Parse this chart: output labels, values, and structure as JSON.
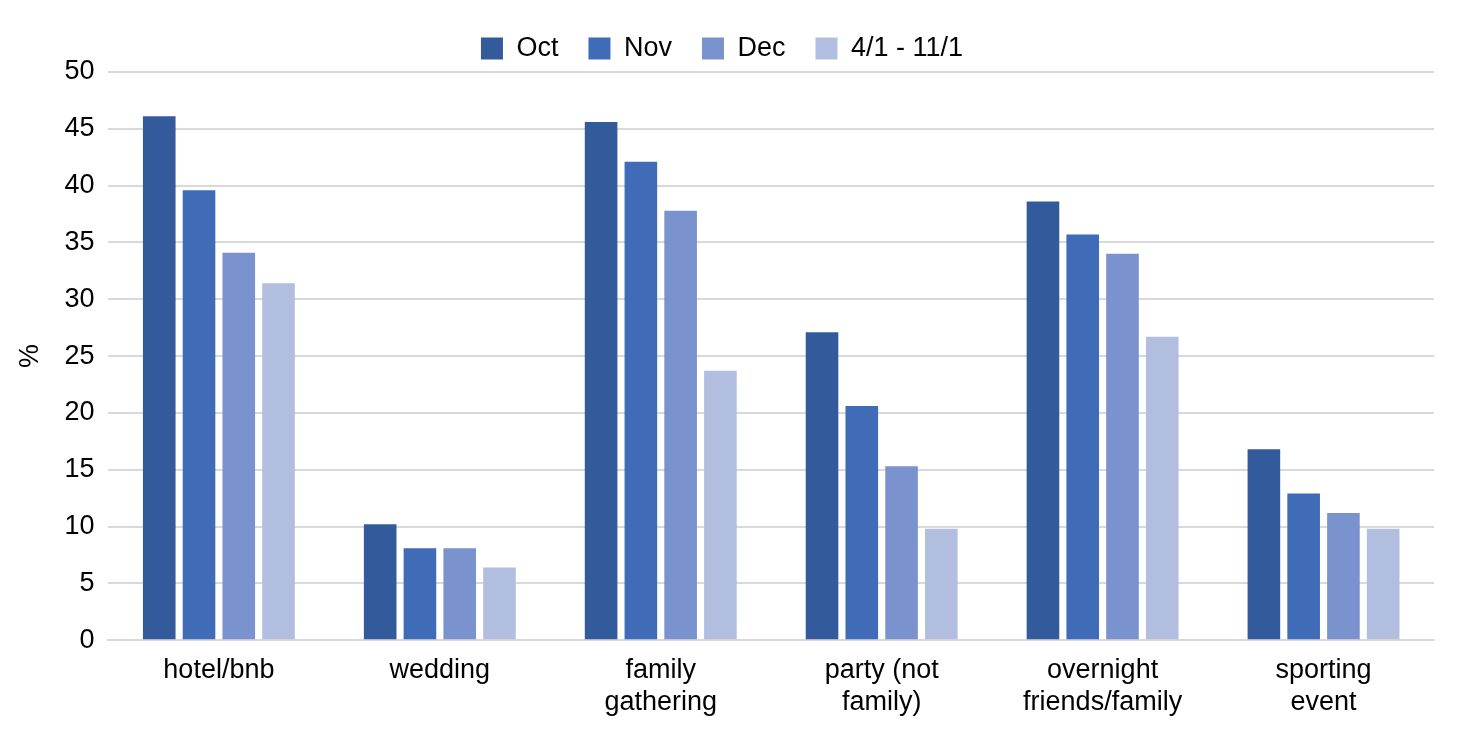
{
  "chart_data": {
    "type": "bar",
    "ylabel": "%",
    "categories": [
      "hotel/bnb",
      "wedding",
      "family gathering",
      "party (not family)",
      "overnight friends/family",
      "sporting event"
    ],
    "series": [
      {
        "name": "Oct",
        "color": "#335a9a",
        "values": [
          46.1,
          10.2,
          45.6,
          27.1,
          38.6,
          16.8
        ]
      },
      {
        "name": "Nov",
        "color": "#3f6bb7",
        "values": [
          39.6,
          8.1,
          42.1,
          20.6,
          35.7,
          12.9
        ]
      },
      {
        "name": "Dec",
        "color": "#7a92cd",
        "values": [
          34.1,
          8.1,
          37.8,
          15.3,
          34.0,
          11.2
        ]
      },
      {
        "name": "4/1 - 11/1",
        "color": "#b2bedf",
        "values": [
          31.4,
          6.4,
          23.7,
          9.8,
          26.7,
          9.8
        ]
      }
    ],
    "ylim": [
      0,
      50
    ],
    "yticks": [
      0,
      5,
      10,
      15,
      20,
      25,
      30,
      35,
      40,
      45,
      50
    ],
    "grid": "y",
    "legend": "top"
  }
}
